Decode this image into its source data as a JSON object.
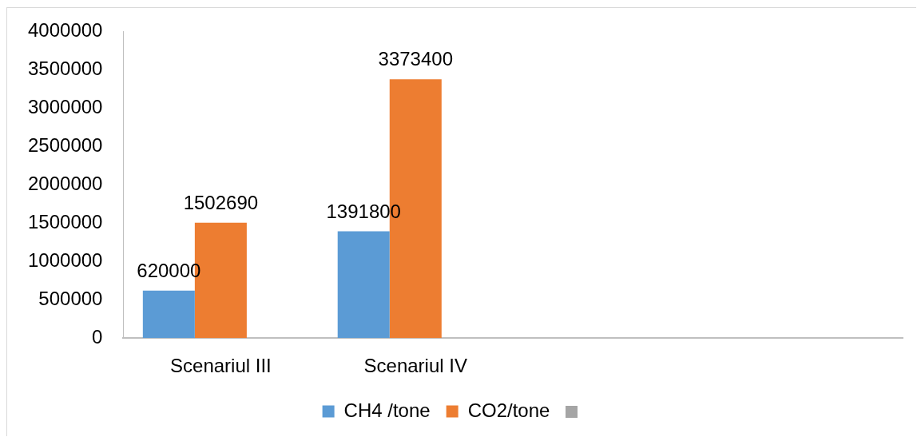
{
  "chart_data": {
    "type": "bar",
    "categories": [
      "Scenariul III",
      "Scenariul IV",
      null,
      null
    ],
    "series": [
      {
        "name": "CH4 /tone",
        "color": "#5b9bd5",
        "values": [
          620000,
          1391800,
          null,
          null
        ]
      },
      {
        "name": "CO2/tone",
        "color": "#ed7d31",
        "values": [
          1502690,
          3373400,
          null,
          null
        ]
      },
      {
        "color": "#a5a5a5",
        "values": [
          null,
          null,
          null,
          null
        ]
      }
    ],
    "ylim": [
      0,
      4000000
    ],
    "yticks": [
      0,
      500000,
      1000000,
      1500000,
      2000000,
      2500000,
      3000000,
      3500000,
      4000000
    ],
    "data_labels": true,
    "legend": "bottom"
  }
}
